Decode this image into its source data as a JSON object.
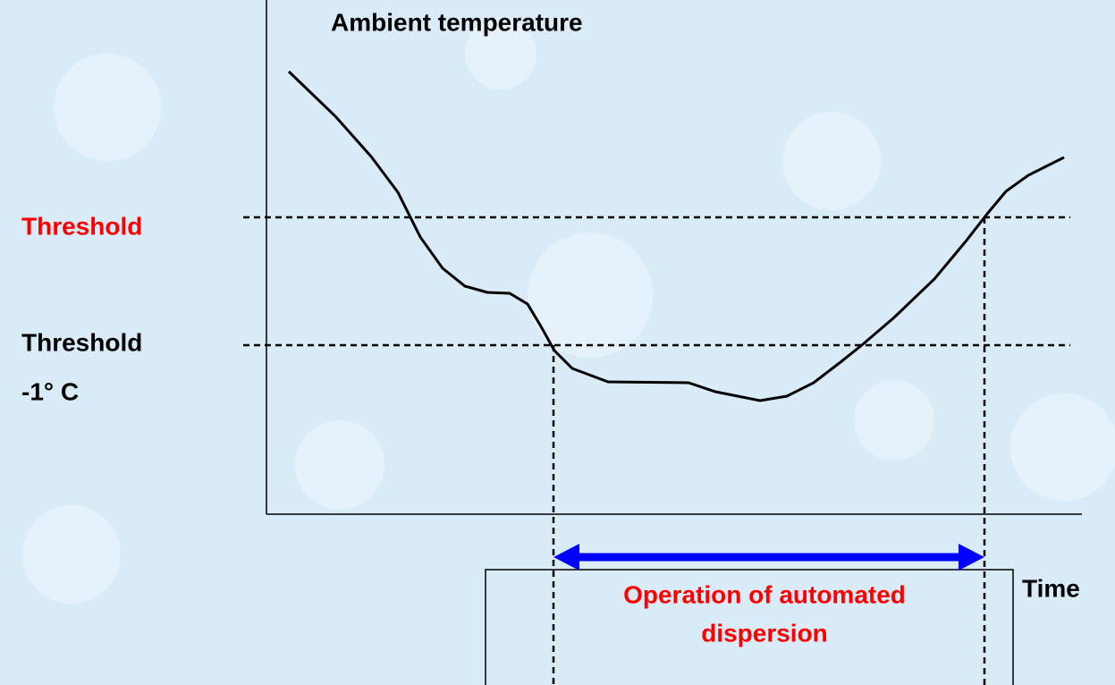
{
  "title": "Ambient temperature",
  "threshold_label": "Threshold",
  "threshold_minus_label": {
    "lines": [
      "Threshold",
      "-1° C"
    ]
  },
  "x_axis_label": "Time",
  "operation_label": {
    "lines": [
      "Operation of automated",
      "dispersion"
    ]
  }
}
